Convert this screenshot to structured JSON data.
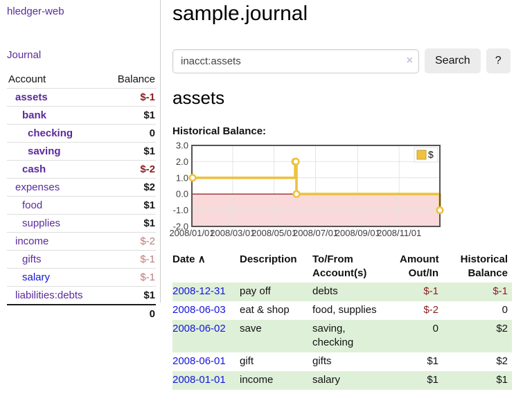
{
  "app": {
    "brand": "hledger-web",
    "nav_journal": "Journal"
  },
  "sidebar": {
    "header": {
      "account": "Account",
      "balance": "Balance"
    },
    "accounts": [
      {
        "name": "assets",
        "balance": "$-1",
        "level": 0,
        "bold": true,
        "tone": "neg"
      },
      {
        "name": "bank",
        "balance": "$1",
        "level": 1,
        "bold": true,
        "tone": "pos"
      },
      {
        "name": "checking",
        "balance": "0",
        "level": 2,
        "bold": true,
        "tone": "pos"
      },
      {
        "name": "saving",
        "balance": "$1",
        "level": 2,
        "bold": true,
        "tone": "pos"
      },
      {
        "name": "cash",
        "balance": "$-2",
        "level": 1,
        "bold": true,
        "tone": "neg"
      },
      {
        "name": "expenses",
        "balance": "$2",
        "level": 0,
        "bold": false,
        "tone": "pos"
      },
      {
        "name": "food",
        "balance": "$1",
        "level": 1,
        "bold": false,
        "tone": "pos"
      },
      {
        "name": "supplies",
        "balance": "$1",
        "level": 1,
        "bold": false,
        "tone": "pos"
      },
      {
        "name": "income",
        "balance": "$-2",
        "level": 0,
        "bold": false,
        "tone": "neg-soft"
      },
      {
        "name": "gifts",
        "balance": "$-1",
        "level": 1,
        "bold": false,
        "tone": "neg-soft"
      },
      {
        "name": "salary",
        "balance": "$-1",
        "level": 1,
        "bold": false,
        "tone": "neg-soft",
        "link_color": "blue"
      },
      {
        "name": "liabilities:debts",
        "balance": "$1",
        "level": 0,
        "bold": false,
        "tone": "pos"
      }
    ],
    "total": "0"
  },
  "main": {
    "title": "sample.journal",
    "search": {
      "value": "inacct:assets",
      "clear_icon": "×",
      "search_button": "Search",
      "help_button": "?"
    },
    "account_heading": "assets",
    "chart_label": "Historical Balance:"
  },
  "chart_data": {
    "type": "line",
    "step": true,
    "title": "Historical Balance:",
    "series": [
      {
        "name": "$",
        "points": [
          [
            "2008-01-01",
            1
          ],
          [
            "2008-06-01",
            2
          ],
          [
            "2008-06-02",
            2
          ],
          [
            "2008-06-03",
            0
          ],
          [
            "2008-12-31",
            -1
          ]
        ]
      }
    ],
    "xlim": [
      "2008-01-01",
      "2008-12-31"
    ],
    "ylim": [
      -2,
      3
    ],
    "yticks": [
      3,
      2,
      1,
      0,
      -1,
      -2
    ],
    "xticks": [
      "2008/01/01",
      "2008/03/01",
      "2008/05/01",
      "2008/07/01",
      "2008/09/01",
      "2008/11/01"
    ],
    "legend": {
      "position": "top-right",
      "label": "$"
    },
    "line_color": "#edc240",
    "negative_region_color": "#f9d9d9",
    "zero_line_color": "#8b0000",
    "grid_color": "#e4e4e4",
    "border_color": "#545454",
    "grid": true
  },
  "register": {
    "columns": {
      "date": "Date",
      "description": "Description",
      "tofrom": "To/From\nAccount(s)",
      "amount": "Amount\nOut/In",
      "balance": "Historical\nBalance"
    },
    "sort_icon": "∧",
    "rows": [
      {
        "date": "2008-12-31",
        "description": "pay off",
        "tofrom": "debts",
        "amount": "$-1",
        "amount_neg": true,
        "balance": "$-1",
        "balance_neg": true
      },
      {
        "date": "2008-06-03",
        "description": "eat & shop",
        "tofrom": "food, supplies",
        "amount": "$-2",
        "amount_neg": true,
        "balance": "0",
        "balance_neg": false
      },
      {
        "date": "2008-06-02",
        "description": "save",
        "tofrom": "saving,\nchecking",
        "amount": "0",
        "amount_neg": false,
        "balance": "$2",
        "balance_neg": false
      },
      {
        "date": "2008-06-01",
        "description": "gift",
        "tofrom": "gifts",
        "amount": "$1",
        "amount_neg": false,
        "balance": "$2",
        "balance_neg": false
      },
      {
        "date": "2008-01-01",
        "description": "income",
        "tofrom": "salary",
        "amount": "$1",
        "amount_neg": false,
        "balance": "$1",
        "balance_neg": false
      }
    ]
  },
  "colors": {
    "link_purple": "#5b2a9d",
    "link_blue": "#1414dd",
    "negative_strong": "#8b1e1e",
    "negative_soft": "#bd7b7b",
    "row_green": "#dff0d8",
    "chart_gold": "#edc240",
    "chart_pink": "#f9d9d9"
  }
}
